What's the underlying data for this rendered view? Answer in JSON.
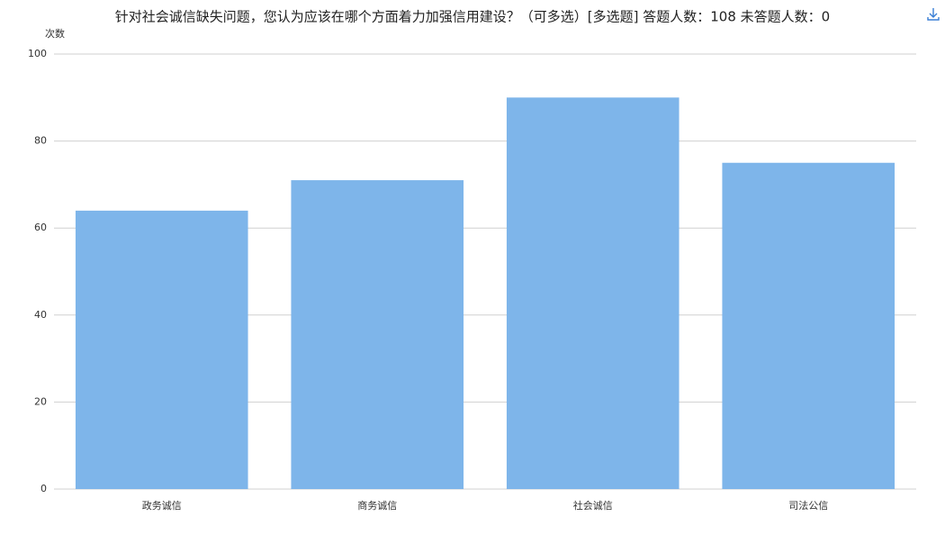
{
  "chart_data": {
    "type": "bar",
    "title": "针对社会诚信缺失问题，您认为应该在哪个方面着力加强信用建设？（可多选）[多选题]  答题人数：108  未答题人数：0",
    "y_label": "次数",
    "categories": [
      "政务诚信",
      "商务诚信",
      "社会诚信",
      "司法公信"
    ],
    "values": [
      64,
      71,
      90,
      75
    ],
    "color": "#7eb5ea",
    "ylim": [
      0,
      100
    ],
    "yticks": [
      0,
      20,
      40,
      60,
      80,
      100
    ],
    "grid": true
  }
}
